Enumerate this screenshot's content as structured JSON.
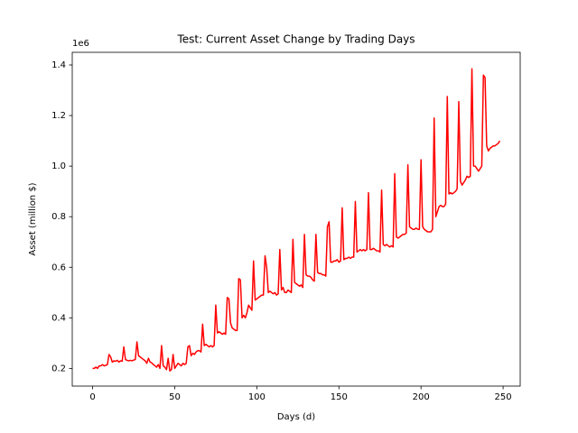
{
  "chart_data": {
    "type": "line",
    "title": "Test: Current Asset Change by Trading Days",
    "x_label": "Days (d)",
    "y_label": "Asset (million $)",
    "y_offset_label": "1e6",
    "color": "#ff0000",
    "xlim": [
      -12.4,
      260.4
    ],
    "ylim": [
      0.13,
      1.45
    ],
    "xticks": [
      0,
      50,
      100,
      150,
      200,
      250
    ],
    "yticks": [
      0.2,
      0.4,
      0.6,
      0.8,
      {
        "value": 1,
        "label": "1.0"
      },
      1.2,
      1.4
    ],
    "grid": false,
    "x": [
      0,
      1,
      2,
      3,
      4,
      5,
      6,
      7,
      8,
      9,
      10,
      11,
      12,
      13,
      14,
      15,
      16,
      17,
      18,
      19,
      20,
      21,
      22,
      23,
      24,
      25,
      26,
      27,
      28,
      29,
      30,
      31,
      32,
      33,
      34,
      35,
      36,
      37,
      38,
      39,
      40,
      41,
      42,
      43,
      44,
      45,
      46,
      47,
      48,
      49,
      50,
      51,
      52,
      53,
      54,
      55,
      56,
      57,
      58,
      59,
      60,
      61,
      62,
      63,
      64,
      65,
      66,
      67,
      68,
      69,
      70,
      71,
      72,
      73,
      74,
      75,
      76,
      77,
      78,
      79,
      80,
      81,
      82,
      83,
      84,
      85,
      86,
      87,
      88,
      89,
      90,
      91,
      92,
      93,
      94,
      95,
      96,
      97,
      98,
      99,
      100,
      101,
      102,
      103,
      104,
      105,
      106,
      107,
      108,
      109,
      110,
      111,
      112,
      113,
      114,
      115,
      116,
      117,
      118,
      119,
      120,
      121,
      122,
      123,
      124,
      125,
      126,
      127,
      128,
      129,
      130,
      131,
      132,
      133,
      134,
      135,
      136,
      137,
      138,
      139,
      140,
      141,
      142,
      143,
      144,
      145,
      146,
      147,
      148,
      149,
      150,
      151,
      152,
      153,
      154,
      155,
      156,
      157,
      158,
      159,
      160,
      161,
      162,
      163,
      164,
      165,
      166,
      167,
      168,
      169,
      170,
      171,
      172,
      173,
      174,
      175,
      176,
      177,
      178,
      179,
      180,
      181,
      182,
      183,
      184,
      185,
      186,
      187,
      188,
      189,
      190,
      191,
      192,
      193,
      194,
      195,
      196,
      197,
      198,
      199,
      200,
      201,
      202,
      203,
      204,
      205,
      206,
      207,
      208,
      209,
      210,
      211,
      212,
      213,
      214,
      215,
      216,
      217,
      218,
      219,
      220,
      221,
      222,
      223,
      224,
      225,
      226,
      227,
      228,
      229,
      230,
      231,
      232,
      233,
      234,
      235,
      236,
      237,
      238,
      239,
      240,
      241,
      242,
      243,
      244,
      245,
      246,
      247,
      248
    ],
    "values": [
      0.2,
      0.2,
      0.205,
      0.2,
      0.21,
      0.21,
      0.215,
      0.21,
      0.212,
      0.215,
      0.255,
      0.245,
      0.225,
      0.23,
      0.228,
      0.232,
      0.225,
      0.23,
      0.228,
      0.285,
      0.235,
      0.232,
      0.23,
      0.232,
      0.23,
      0.233,
      0.235,
      0.305,
      0.25,
      0.245,
      0.24,
      0.235,
      0.23,
      0.22,
      0.24,
      0.225,
      0.222,
      0.215,
      0.21,
      0.205,
      0.215,
      0.2,
      0.29,
      0.21,
      0.205,
      0.195,
      0.24,
      0.19,
      0.195,
      0.255,
      0.2,
      0.21,
      0.22,
      0.215,
      0.21,
      0.22,
      0.215,
      0.22,
      0.285,
      0.29,
      0.25,
      0.26,
      0.255,
      0.265,
      0.27,
      0.27,
      0.265,
      0.375,
      0.29,
      0.295,
      0.29,
      0.285,
      0.29,
      0.285,
      0.29,
      0.45,
      0.34,
      0.345,
      0.34,
      0.335,
      0.34,
      0.335,
      0.48,
      0.475,
      0.38,
      0.36,
      0.355,
      0.35,
      0.35,
      0.555,
      0.55,
      0.4,
      0.41,
      0.4,
      0.42,
      0.45,
      0.44,
      0.43,
      0.625,
      0.47,
      0.475,
      0.48,
      0.485,
      0.49,
      0.49,
      0.645,
      0.6,
      0.5,
      0.505,
      0.5,
      0.495,
      0.5,
      0.49,
      0.495,
      0.67,
      0.51,
      0.52,
      0.5,
      0.5,
      0.51,
      0.505,
      0.5,
      0.71,
      0.54,
      0.535,
      0.53,
      0.525,
      0.53,
      0.52,
      0.73,
      0.57,
      0.565,
      0.565,
      0.56,
      0.55,
      0.545,
      0.73,
      0.58,
      0.575,
      0.575,
      0.57,
      0.57,
      0.565,
      0.76,
      0.78,
      0.62,
      0.62,
      0.625,
      0.625,
      0.63,
      0.62,
      0.625,
      0.835,
      0.63,
      0.635,
      0.635,
      0.64,
      0.635,
      0.64,
      0.64,
      0.86,
      0.66,
      0.665,
      0.67,
      0.665,
      0.67,
      0.665,
      0.67,
      0.895,
      0.67,
      0.67,
      0.675,
      0.67,
      0.665,
      0.665,
      0.66,
      0.905,
      0.69,
      0.685,
      0.69,
      0.685,
      0.68,
      0.685,
      0.68,
      0.97,
      0.72,
      0.715,
      0.72,
      0.725,
      0.73,
      0.73,
      0.735,
      1.005,
      0.76,
      0.755,
      0.75,
      0.75,
      0.755,
      0.75,
      0.75,
      1.025,
      0.76,
      0.75,
      0.745,
      0.74,
      0.74,
      0.74,
      0.75,
      1.19,
      0.8,
      0.82,
      0.84,
      0.845,
      0.84,
      0.84,
      0.85,
      1.275,
      0.89,
      0.895,
      0.89,
      0.895,
      0.9,
      0.91,
      1.255,
      0.94,
      0.925,
      0.935,
      0.945,
      0.96,
      0.955,
      0.96,
      1.385,
      1.0,
      1.0,
      0.99,
      0.98,
      0.99,
      1.0,
      1.36,
      1.35,
      1.08,
      1.06,
      1.07,
      1.075,
      1.08,
      1.08,
      1.085,
      1.09,
      1.1
    ]
  }
}
